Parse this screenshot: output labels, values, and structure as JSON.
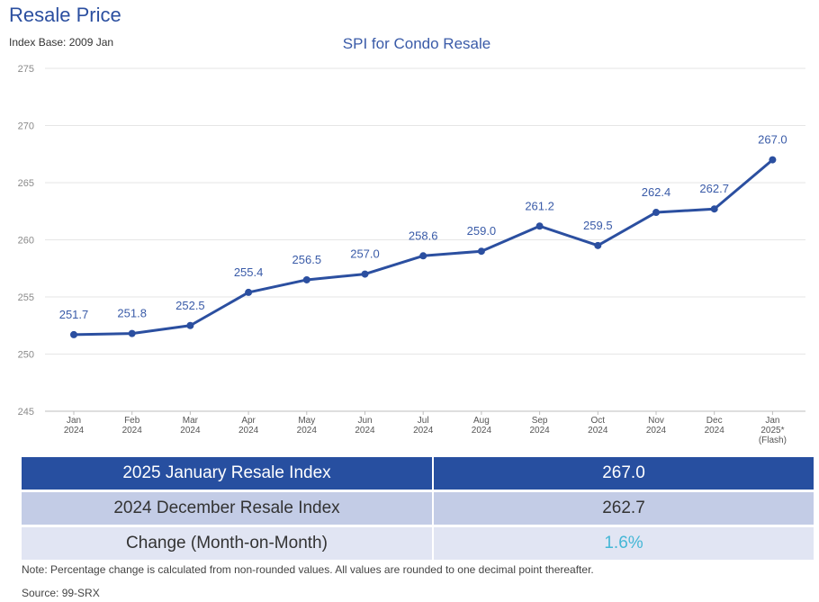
{
  "header": {
    "title": "Resale Price",
    "index_base": "Index Base: 2009 Jan"
  },
  "chart_data": {
    "type": "line",
    "title": "SPI for Condo Resale",
    "xlabel": "",
    "ylabel": "",
    "categories": [
      [
        "Jan",
        "2024"
      ],
      [
        "Feb",
        "2024"
      ],
      [
        "Mar",
        "2024"
      ],
      [
        "Apr",
        "2024"
      ],
      [
        "May",
        "2024"
      ],
      [
        "Jun",
        "2024"
      ],
      [
        "Jul",
        "2024"
      ],
      [
        "Aug",
        "2024"
      ],
      [
        "Sep",
        "2024"
      ],
      [
        "Oct",
        "2024"
      ],
      [
        "Nov",
        "2024"
      ],
      [
        "Dec",
        "2024"
      ],
      [
        "Jan",
        "2025*",
        "(Flash)"
      ]
    ],
    "values": [
      251.7,
      251.8,
      252.5,
      255.4,
      256.5,
      257.0,
      258.6,
      259.0,
      261.2,
      259.5,
      262.4,
      262.7,
      267.0
    ],
    "value_labels": [
      "251.7",
      "251.8",
      "252.5",
      "255.4",
      "256.5",
      "257.0",
      "258.6",
      "259.0",
      "261.2",
      "259.5",
      "262.4",
      "262.7",
      "267.0"
    ],
    "ylim": [
      245,
      275
    ],
    "yticks": [
      245,
      250,
      255,
      260,
      265,
      270,
      275
    ],
    "grid": true,
    "line_color": "#2b4fa0",
    "legend": "none"
  },
  "summary": {
    "rows": [
      {
        "label": "2025 January Resale Index",
        "value": "267.0"
      },
      {
        "label": "2024 December Resale Index",
        "value": "262.7"
      },
      {
        "label": "Change (Month-on-Month)",
        "value": "1.6%"
      }
    ]
  },
  "footer": {
    "note": "Note: Percentage change is calculated from non-rounded values.  All values are rounded to one decimal point thereafter.",
    "source": "Source: 99-SRX"
  }
}
